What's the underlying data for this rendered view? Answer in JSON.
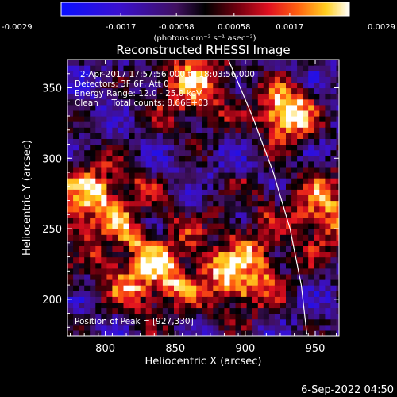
{
  "chart_data": {
    "type": "heatmap",
    "title": "Reconstructed RHESSI Image",
    "xlabel": "Heliocentric X (arcsec)",
    "ylabel": "Heliocentric Y (arcsec)",
    "xlim": [
      773,
      967
    ],
    "ylim": [
      174,
      370
    ],
    "x_ticks": [
      "800",
      "850",
      "900",
      "950"
    ],
    "y_ticks": [
      "200",
      "250",
      "300",
      "350"
    ],
    "colorbar": {
      "range": [
        -0.0029,
        0.0029
      ],
      "tick_labels": [
        "-0.0029",
        "-0.0017",
        "-0.00058",
        "0.00058",
        "0.0017",
        "0.0029"
      ],
      "units_label": "(photons cm⁻² s⁻¹ asec⁻²)"
    },
    "annotations": {
      "time_range": "2-Apr-2017 17:57:56.000 to 18:03:56.000",
      "detectors": "Detectors: 3F 6F, Att 0",
      "energy_range": "Energy Range: 12.0 - 25.0 keV",
      "method_counts": "Clean     Total counts: 8.66E+03",
      "peak_position": "Position of Peak = [927,330]"
    },
    "grid": false,
    "limb_overlay": true,
    "bright_sources": [
      {
        "x": 927,
        "y": 330,
        "label": "peak"
      },
      {
        "x": 860,
        "y": 350
      },
      {
        "x": 790,
        "y": 270
      },
      {
        "x": 955,
        "y": 260
      },
      {
        "x": 830,
        "y": 215
      },
      {
        "x": 895,
        "y": 215
      }
    ],
    "colors": {
      "negative": "#2020ff",
      "zero": "#000000",
      "positive_mid": "#e0202a",
      "positive_high": "#ffff40",
      "max": "#ffffff",
      "limb": "#ffffff"
    }
  },
  "footer": {
    "date": "6-Sep-2022 04:50"
  }
}
